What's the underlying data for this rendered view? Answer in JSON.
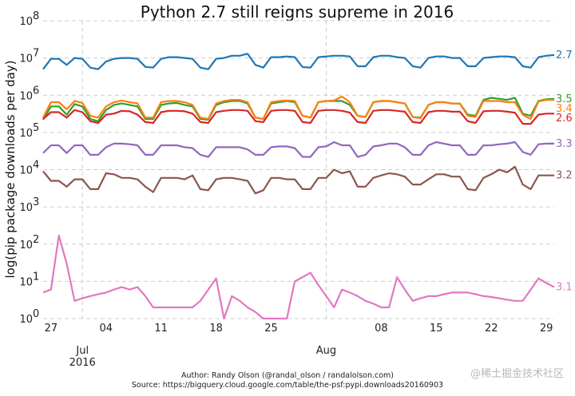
{
  "chart_data": {
    "type": "line",
    "title": "Python 2.7 still reigns supreme in 2016",
    "xlabel": "",
    "ylabel": "log(pip package downloads per day)",
    "yscale": "log",
    "ylim": [
      1,
      100000000
    ],
    "y_ticks": [
      {
        "value": 1,
        "label": "10",
        "exp": "0"
      },
      {
        "value": 10,
        "label": "10",
        "exp": "1"
      },
      {
        "value": 100,
        "label": "10",
        "exp": "2"
      },
      {
        "value": 1000,
        "label": "10",
        "exp": "3"
      },
      {
        "value": 10000,
        "label": "10",
        "exp": "4"
      },
      {
        "value": 100000,
        "label": "10",
        "exp": "5"
      },
      {
        "value": 1000000,
        "label": "10",
        "exp": "6"
      },
      {
        "value": 10000000,
        "label": "10",
        "exp": "7"
      },
      {
        "value": 100000000,
        "label": "10",
        "exp": "8"
      }
    ],
    "x_ticks": [
      {
        "day": 1,
        "label": "27"
      },
      {
        "day": 8,
        "label": "04"
      },
      {
        "day": 15,
        "label": "11"
      },
      {
        "day": 22,
        "label": "18"
      },
      {
        "day": 29,
        "label": "25"
      },
      {
        "day": 43,
        "label": "08"
      },
      {
        "day": 50,
        "label": "15"
      },
      {
        "day": 57,
        "label": "22"
      },
      {
        "day": 64,
        "label": "29"
      }
    ],
    "month_labels": [
      {
        "day": 5,
        "label": "Jul",
        "sub": "2016"
      },
      {
        "day": 36,
        "label": "Aug",
        "sub": ""
      }
    ],
    "grid": true,
    "x_start_date": "2016-06-26",
    "series": [
      {
        "name": "2.7",
        "color": "#1f77b4",
        "values": [
          5000000,
          9500000,
          9500000,
          6500000,
          10000000,
          9500000,
          5500000,
          5000000,
          8000000,
          9500000,
          10000000,
          10000000,
          9500000,
          5800000,
          5500000,
          9500000,
          10500000,
          10500000,
          10000000,
          9500000,
          5500000,
          5000000,
          9500000,
          10000000,
          11500000,
          11500000,
          13000000,
          6500000,
          5500000,
          10500000,
          10500000,
          11000000,
          10500000,
          5700000,
          5500000,
          10500000,
          11000000,
          11500000,
          11500000,
          11000000,
          6000000,
          6000000,
          10500000,
          11500000,
          11500000,
          10500000,
          10000000,
          6000000,
          5500000,
          10000000,
          11000000,
          11000000,
          10000000,
          10000000,
          6000000,
          6000000,
          10000000,
          10500000,
          11000000,
          11000000,
          10500000,
          6000000,
          5500000,
          10500000,
          11500000,
          12000000
        ]
      },
      {
        "name": "3.5",
        "color": "#2ca02c",
        "values": [
          220000,
          500000,
          500000,
          300000,
          580000,
          500000,
          230000,
          200000,
          400000,
          550000,
          600000,
          550000,
          500000,
          230000,
          230000,
          550000,
          600000,
          620000,
          550000,
          500000,
          230000,
          220000,
          550000,
          650000,
          700000,
          700000,
          600000,
          250000,
          230000,
          600000,
          650000,
          700000,
          650000,
          280000,
          250000,
          650000,
          700000,
          700000,
          700000,
          550000,
          280000,
          260000,
          650000,
          700000,
          700000,
          650000,
          600000,
          260000,
          250000,
          550000,
          650000,
          650000,
          600000,
          600000,
          300000,
          280000,
          750000,
          850000,
          800000,
          750000,
          850000,
          320000,
          280000,
          700000,
          780000,
          800000
        ]
      },
      {
        "name": "3.4",
        "color": "#ff7f0e",
        "values": [
          250000,
          650000,
          650000,
          420000,
          700000,
          620000,
          280000,
          250000,
          500000,
          650000,
          720000,
          650000,
          600000,
          250000,
          250000,
          650000,
          700000,
          700000,
          650000,
          550000,
          250000,
          230000,
          600000,
          700000,
          750000,
          750000,
          650000,
          250000,
          230000,
          650000,
          700000,
          720000,
          700000,
          280000,
          250000,
          650000,
          700000,
          720000,
          920000,
          650000,
          280000,
          260000,
          650000,
          700000,
          700000,
          650000,
          600000,
          260000,
          240000,
          550000,
          650000,
          650000,
          600000,
          600000,
          280000,
          260000,
          700000,
          700000,
          700000,
          650000,
          650000,
          300000,
          230000,
          680000,
          750000,
          750000
        ]
      },
      {
        "name": "2.6",
        "color": "#d62728",
        "values": [
          230000,
          350000,
          350000,
          250000,
          400000,
          350000,
          200000,
          180000,
          300000,
          320000,
          380000,
          370000,
          300000,
          190000,
          180000,
          350000,
          380000,
          380000,
          370000,
          320000,
          190000,
          180000,
          350000,
          380000,
          400000,
          400000,
          380000,
          200000,
          190000,
          380000,
          400000,
          400000,
          380000,
          190000,
          180000,
          380000,
          400000,
          400000,
          380000,
          340000,
          190000,
          180000,
          380000,
          400000,
          400000,
          380000,
          360000,
          190000,
          180000,
          350000,
          380000,
          380000,
          360000,
          360000,
          200000,
          180000,
          370000,
          380000,
          380000,
          360000,
          340000,
          170000,
          170000,
          300000,
          320000,
          320000
        ]
      },
      {
        "name": "3.3",
        "color": "#9467bd",
        "values": [
          28000,
          45000,
          45000,
          28000,
          45000,
          45000,
          25000,
          25000,
          40000,
          50000,
          50000,
          48000,
          45000,
          25000,
          25000,
          45000,
          45000,
          45000,
          40000,
          38000,
          25000,
          22000,
          40000,
          40000,
          40000,
          40000,
          35000,
          25000,
          25000,
          40000,
          42000,
          42000,
          38000,
          22000,
          22000,
          40000,
          42000,
          55000,
          45000,
          45000,
          22000,
          25000,
          42000,
          45000,
          50000,
          50000,
          40000,
          25000,
          25000,
          45000,
          55000,
          50000,
          45000,
          45000,
          25000,
          25000,
          45000,
          45000,
          48000,
          50000,
          55000,
          30000,
          25000,
          48000,
          50000,
          50000
        ]
      },
      {
        "name": "3.2",
        "color": "#8c564b",
        "values": [
          9000,
          5000,
          5000,
          3500,
          5500,
          5500,
          3000,
          3000,
          8000,
          7500,
          6000,
          6000,
          5500,
          3500,
          2500,
          6000,
          6000,
          6000,
          5500,
          7000,
          3000,
          2800,
          5500,
          6000,
          6000,
          5500,
          5000,
          2300,
          2800,
          6000,
          6000,
          5500,
          5500,
          3000,
          3000,
          6000,
          6000,
          10000,
          8000,
          9000,
          3500,
          3500,
          6000,
          7000,
          8000,
          7500,
          6500,
          4000,
          4000,
          5500,
          7500,
          7500,
          6500,
          6500,
          3000,
          2800,
          6000,
          7500,
          10000,
          8500,
          12000,
          4000,
          3000,
          7000,
          7000,
          7000
        ]
      },
      {
        "name": "3.1",
        "color": "#e377c2",
        "values": [
          5,
          6,
          170,
          30,
          3,
          3.5,
          4,
          4.5,
          5,
          6,
          7,
          6,
          7,
          4,
          2,
          2,
          2,
          2,
          2,
          2,
          3,
          6,
          12,
          1,
          4,
          3,
          2,
          1.5,
          1,
          1,
          1,
          1,
          10,
          13,
          17,
          8,
          4,
          2,
          6,
          5,
          4,
          3,
          2.5,
          2,
          2,
          13,
          6,
          3,
          3.5,
          4,
          4,
          4.5,
          5,
          5,
          5,
          4.5,
          4,
          3.8,
          3.5,
          3.2,
          3,
          3,
          6,
          12,
          9,
          7
        ]
      }
    ]
  },
  "footer": {
    "author": "Author: Randy Olson (@randal_olson / randalolson.com)",
    "source": "Source: https://bigquery.cloud.google.com/table/the-psf:pypi.downloads20160903"
  },
  "watermark": "@稀土掘金技术社区"
}
